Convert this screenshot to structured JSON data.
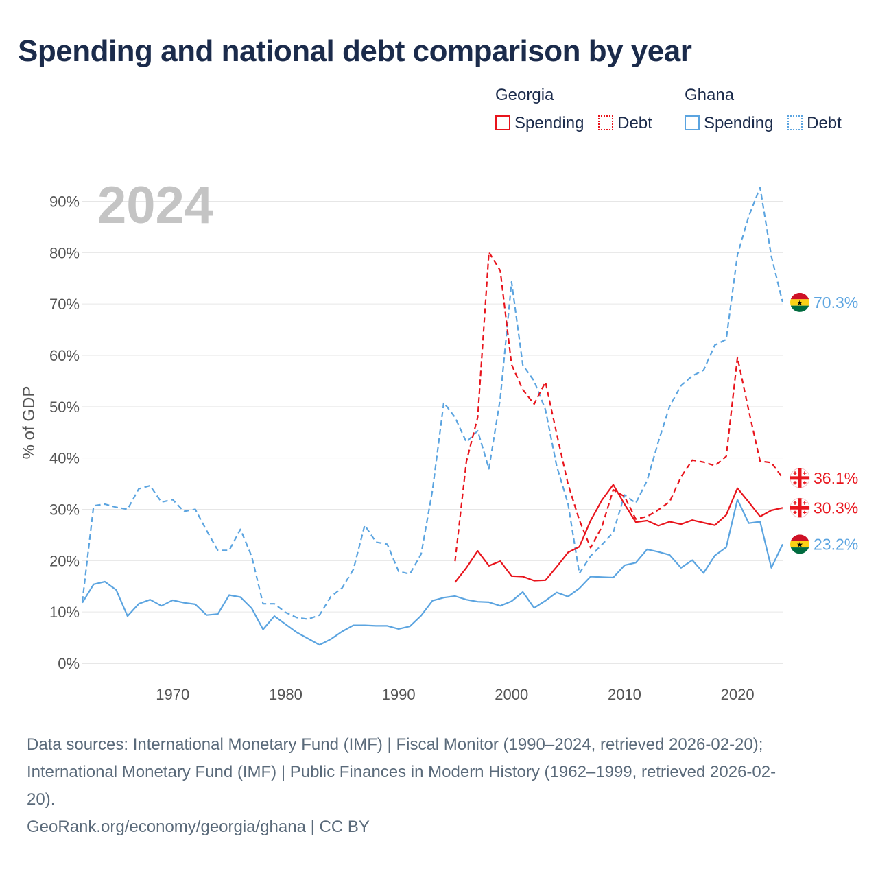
{
  "title": "Spending and national debt comparison by year",
  "legend": {
    "groups": [
      {
        "country": "Georgia",
        "spending_label": "Spending",
        "debt_label": "Debt"
      },
      {
        "country": "Ghana",
        "spending_label": "Spending",
        "debt_label": "Debt"
      }
    ]
  },
  "year_watermark": "2024",
  "colors": {
    "georgia": "#e8141c",
    "ghana": "#5ba4e0",
    "grid": "#e6e6e6",
    "axis_text": "#555555",
    "watermark": "#c4c4c4"
  },
  "chart_data": {
    "type": "line",
    "title": "Spending and national debt comparison by year",
    "xlabel": "",
    "ylabel": "% of GDP",
    "xlim": [
      1962,
      2024
    ],
    "ylim": [
      0,
      95
    ],
    "x_ticks": [
      1970,
      1980,
      1990,
      2000,
      2010,
      2020
    ],
    "y_ticks": [
      {
        "value": 0,
        "label": "0%"
      },
      {
        "value": 10,
        "label": "10%"
      },
      {
        "value": 20,
        "label": "20%"
      },
      {
        "value": 30,
        "label": "30%"
      },
      {
        "value": 40,
        "label": "40%"
      },
      {
        "value": 50,
        "label": "50%"
      },
      {
        "value": 60,
        "label": "60%"
      },
      {
        "value": 70,
        "label": "70%"
      },
      {
        "value": 80,
        "label": "80%"
      },
      {
        "value": 90,
        "label": "90%"
      }
    ],
    "series": [
      {
        "name": "Ghana Debt",
        "country": "Ghana",
        "metric": "Debt",
        "style": "dashed",
        "color": "#5ba4e0",
        "x": [
          1962,
          1963,
          1964,
          1965,
          1966,
          1967,
          1968,
          1969,
          1970,
          1971,
          1972,
          1973,
          1974,
          1975,
          1976,
          1977,
          1978,
          1979,
          1980,
          1981,
          1982,
          1983,
          1984,
          1985,
          1986,
          1987,
          1988,
          1989,
          1990,
          1991,
          1992,
          1993,
          1994,
          1995,
          1996,
          1997,
          1998,
          1999,
          2000,
          2001,
          2002,
          2003,
          2004,
          2005,
          2006,
          2007,
          2008,
          2009,
          2010,
          2011,
          2012,
          2013,
          2014,
          2015,
          2016,
          2017,
          2018,
          2019,
          2020,
          2021,
          2022,
          2023,
          2024
        ],
        "values": [
          12.0,
          30.7,
          31.0,
          30.4,
          30.0,
          34.0,
          34.6,
          31.4,
          31.9,
          29.6,
          30.0,
          25.9,
          22.0,
          22.0,
          26.1,
          20.8,
          11.6,
          11.6,
          9.9,
          8.9,
          8.6,
          9.4,
          13.0,
          14.7,
          18.3,
          26.9,
          23.6,
          23.2,
          17.9,
          17.4,
          21.3,
          33.7,
          50.8,
          47.9,
          43.1,
          45.3,
          37.9,
          51.6,
          74.3,
          58.1,
          55.0,
          49.4,
          38.4,
          31.1,
          17.5,
          20.9,
          23.1,
          25.5,
          32.8,
          31.2,
          35.6,
          43.2,
          50.1,
          54.1,
          56.0,
          57.1,
          62.0,
          63.1,
          79.6,
          87.1,
          92.7,
          79.3,
          70.3
        ],
        "end_label": "70.3%"
      },
      {
        "name": "Ghana Spending",
        "country": "Ghana",
        "metric": "Spending",
        "style": "solid",
        "color": "#5ba4e0",
        "x": [
          1962,
          1963,
          1964,
          1965,
          1966,
          1967,
          1968,
          1969,
          1970,
          1971,
          1972,
          1973,
          1974,
          1975,
          1976,
          1977,
          1978,
          1979,
          1980,
          1981,
          1982,
          1983,
          1984,
          1985,
          1986,
          1987,
          1988,
          1989,
          1990,
          1991,
          1992,
          1993,
          1994,
          1995,
          1996,
          1997,
          1998,
          1999,
          2000,
          2001,
          2002,
          2003,
          2004,
          2005,
          2006,
          2007,
          2008,
          2009,
          2010,
          2011,
          2012,
          2013,
          2014,
          2015,
          2016,
          2017,
          2018,
          2019,
          2020,
          2021,
          2022,
          2023,
          2024
        ],
        "values": [
          11.8,
          15.4,
          15.9,
          14.3,
          9.2,
          11.6,
          12.4,
          11.2,
          12.3,
          11.8,
          11.5,
          9.4,
          9.6,
          13.3,
          12.9,
          10.7,
          6.6,
          9.2,
          7.6,
          6.0,
          4.8,
          3.6,
          4.7,
          6.2,
          7.4,
          7.4,
          7.3,
          7.3,
          6.7,
          7.2,
          9.3,
          12.2,
          12.8,
          13.1,
          12.4,
          12.0,
          11.9,
          11.2,
          12.1,
          13.9,
          10.8,
          12.2,
          13.8,
          13.0,
          14.6,
          16.9,
          16.8,
          16.7,
          19.1,
          19.6,
          22.2,
          21.7,
          21.1,
          18.6,
          20.1,
          17.6,
          21.0,
          22.6,
          31.9,
          27.3,
          27.6,
          18.6,
          23.2
        ],
        "end_label": "23.2%"
      },
      {
        "name": "Georgia Debt",
        "country": "Georgia",
        "metric": "Debt",
        "style": "dashed",
        "color": "#e8141c",
        "x": [
          1995,
          1996,
          1997,
          1998,
          1999,
          2000,
          2001,
          2002,
          2003,
          2004,
          2005,
          2006,
          2007,
          2008,
          2009,
          2010,
          2011,
          2012,
          2013,
          2014,
          2015,
          2016,
          2017,
          2018,
          2019,
          2020,
          2021,
          2022,
          2023,
          2024
        ],
        "values": [
          19.9,
          39.3,
          47.9,
          80.1,
          76.5,
          58.2,
          53.3,
          50.5,
          54.8,
          44.7,
          34.9,
          27.9,
          22.5,
          26.6,
          33.8,
          32.5,
          28.1,
          28.6,
          29.9,
          31.5,
          36.3,
          39.6,
          39.2,
          38.5,
          40.3,
          59.6,
          49.2,
          39.4,
          39.1,
          36.1
        ],
        "end_label": "36.1%"
      },
      {
        "name": "Georgia Spending",
        "country": "Georgia",
        "metric": "Spending",
        "style": "solid",
        "color": "#e8141c",
        "x": [
          1995,
          1996,
          1997,
          1998,
          1999,
          2000,
          2001,
          2002,
          2003,
          2004,
          2005,
          2006,
          2007,
          2008,
          2009,
          2010,
          2011,
          2012,
          2013,
          2014,
          2015,
          2016,
          2017,
          2018,
          2019,
          2020,
          2021,
          2022,
          2023,
          2024
        ],
        "values": [
          15.8,
          18.6,
          21.9,
          19.0,
          19.9,
          17.0,
          16.9,
          16.1,
          16.2,
          18.8,
          21.6,
          22.7,
          27.8,
          31.8,
          34.8,
          31.0,
          27.5,
          27.8,
          26.8,
          27.6,
          27.1,
          27.9,
          27.4,
          26.9,
          28.9,
          34.1,
          31.4,
          28.6,
          29.8,
          30.3
        ],
        "end_label": "30.3%"
      }
    ]
  },
  "footer": {
    "line1": "Data sources: International Monetary Fund (IMF) | Fiscal Monitor (1990–2024, retrieved 2026-02-20);",
    "line2": "International Monetary Fund (IMF) | Public Finances in Modern History (1962–1999, retrieved 2026-02-",
    "line3": "20).",
    "line4": "GeoRank.org/economy/georgia/ghana | CC BY"
  }
}
